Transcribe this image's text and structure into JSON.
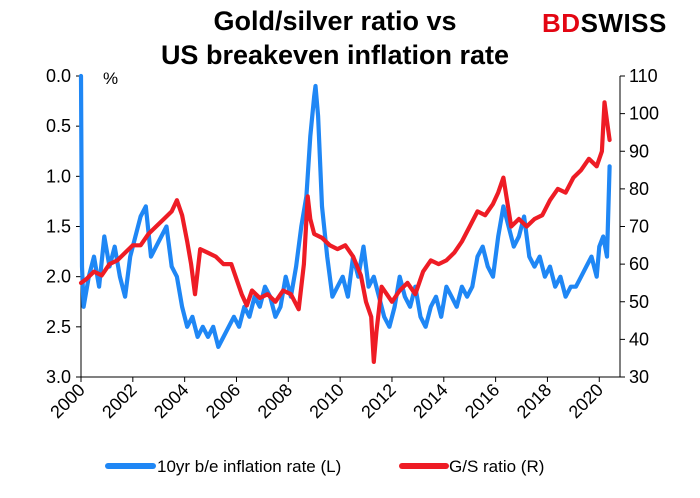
{
  "header": {
    "title_line1": "Gold/silver ratio vs",
    "title_line2": "US breakeven inflation rate"
  },
  "logo": {
    "part1": "BD",
    "part2": "SWISS",
    "color1": "#e30613",
    "color2": "#000000"
  },
  "chart_data": {
    "type": "line",
    "title": "Gold/silver ratio vs US breakeven inflation rate",
    "left_axis_unit": "%",
    "x_ticks": [
      "2000",
      "2002",
      "2004",
      "2006",
      "2008",
      "2010",
      "2012",
      "2014",
      "2016",
      "2018",
      "2020"
    ],
    "left_axis": {
      "inverted": true,
      "ylim": [
        0,
        3
      ],
      "ticks": [
        "0.0",
        "0.5",
        "1.0",
        "1.5",
        "2.0",
        "2.5",
        "3.0"
      ]
    },
    "right_axis": {
      "ylim": [
        30,
        110
      ],
      "ticks": [
        "30",
        "40",
        "50",
        "60",
        "70",
        "80",
        "90",
        "100",
        "110"
      ]
    },
    "xlim": [
      2000,
      2020.8
    ],
    "grid": false,
    "legend_position": "bottom",
    "series": [
      {
        "name": "10yr b/e inflation rate (L)",
        "axis": "left",
        "color": "#1f87f5",
        "x": [
          2000.0,
          2000.04,
          2000.1,
          2000.3,
          2000.5,
          2000.7,
          2000.9,
          2001.1,
          2001.3,
          2001.5,
          2001.7,
          2001.9,
          2002.1,
          2002.3,
          2002.5,
          2002.7,
          2002.9,
          2003.1,
          2003.3,
          2003.5,
          2003.7,
          2003.9,
          2004.1,
          2004.3,
          2004.5,
          2004.7,
          2004.9,
          2005.1,
          2005.3,
          2005.5,
          2005.7,
          2005.9,
          2006.1,
          2006.3,
          2006.5,
          2006.7,
          2006.9,
          2007.1,
          2007.3,
          2007.5,
          2007.7,
          2007.9,
          2008.1,
          2008.3,
          2008.5,
          2008.7,
          2008.85,
          2009.0,
          2009.05,
          2009.15,
          2009.3,
          2009.5,
          2009.7,
          2009.9,
          2010.1,
          2010.3,
          2010.5,
          2010.7,
          2010.9,
          2011.1,
          2011.3,
          2011.5,
          2011.7,
          2011.9,
          2012.1,
          2012.3,
          2012.5,
          2012.7,
          2012.9,
          2013.1,
          2013.3,
          2013.5,
          2013.7,
          2013.9,
          2014.1,
          2014.3,
          2014.5,
          2014.7,
          2014.9,
          2015.1,
          2015.3,
          2015.5,
          2015.7,
          2015.9,
          2016.1,
          2016.3,
          2016.5,
          2016.7,
          2016.9,
          2017.1,
          2017.3,
          2017.5,
          2017.7,
          2017.9,
          2018.1,
          2018.3,
          2018.5,
          2018.7,
          2018.9,
          2019.1,
          2019.3,
          2019.5,
          2019.7,
          2019.9,
          2020.0,
          2020.15,
          2020.3,
          2020.4
        ],
        "values": [
          0.0,
          1.9,
          2.3,
          2.0,
          1.8,
          2.1,
          1.6,
          1.9,
          1.7,
          2.0,
          2.2,
          1.8,
          1.6,
          1.4,
          1.3,
          1.8,
          1.7,
          1.6,
          1.5,
          1.9,
          2.0,
          2.3,
          2.5,
          2.4,
          2.6,
          2.5,
          2.6,
          2.5,
          2.7,
          2.6,
          2.5,
          2.4,
          2.5,
          2.3,
          2.4,
          2.2,
          2.3,
          2.1,
          2.2,
          2.4,
          2.3,
          2.0,
          2.2,
          1.9,
          1.5,
          1.2,
          0.6,
          0.2,
          0.1,
          0.4,
          1.3,
          1.8,
          2.2,
          2.1,
          2.0,
          2.2,
          1.8,
          2.0,
          1.7,
          2.1,
          2.0,
          2.2,
          2.4,
          2.5,
          2.3,
          2.0,
          2.2,
          2.3,
          2.1,
          2.4,
          2.5,
          2.3,
          2.2,
          2.4,
          2.1,
          2.2,
          2.3,
          2.1,
          2.2,
          2.1,
          1.8,
          1.7,
          1.9,
          2.0,
          1.6,
          1.3,
          1.5,
          1.7,
          1.6,
          1.4,
          1.8,
          1.9,
          1.8,
          2.0,
          1.9,
          2.1,
          2.0,
          2.2,
          2.1,
          2.1,
          2.0,
          1.9,
          1.8,
          2.0,
          1.7,
          1.6,
          1.8,
          0.9
        ]
      },
      {
        "name": "G/S ratio (R)",
        "axis": "right",
        "color": "#ee1c25",
        "x": [
          2000.0,
          2000.2,
          2000.5,
          2000.8,
          2001.1,
          2001.4,
          2001.7,
          2002.0,
          2002.3,
          2002.6,
          2002.9,
          2003.2,
          2003.5,
          2003.7,
          2003.9,
          2004.1,
          2004.25,
          2004.4,
          2004.6,
          2004.9,
          2005.2,
          2005.5,
          2005.8,
          2006.0,
          2006.2,
          2006.4,
          2006.6,
          2006.9,
          2007.2,
          2007.5,
          2007.8,
          2008.1,
          2008.4,
          2008.6,
          2008.75,
          2008.85,
          2009.0,
          2009.3,
          2009.6,
          2009.9,
          2010.2,
          2010.5,
          2010.8,
          2011.0,
          2011.2,
          2011.3,
          2011.4,
          2011.6,
          2011.8,
          2012.0,
          2012.3,
          2012.6,
          2012.9,
          2013.2,
          2013.5,
          2013.8,
          2014.1,
          2014.4,
          2014.7,
          2015.0,
          2015.3,
          2015.6,
          2015.9,
          2016.1,
          2016.3,
          2016.6,
          2016.9,
          2017.2,
          2017.5,
          2017.8,
          2018.1,
          2018.4,
          2018.7,
          2019.0,
          2019.3,
          2019.6,
          2019.9,
          2020.1,
          2020.2,
          2020.3,
          2020.4
        ],
        "values": [
          55,
          56,
          58,
          57,
          60,
          61,
          63,
          65,
          65,
          68,
          70,
          72,
          74,
          77,
          73,
          66,
          60,
          52,
          64,
          63,
          62,
          60,
          60,
          56,
          52,
          49,
          53,
          51,
          52,
          50,
          53,
          52,
          48,
          60,
          78,
          72,
          68,
          67,
          65,
          64,
          65,
          62,
          57,
          50,
          46,
          34,
          42,
          54,
          52,
          50,
          53,
          55,
          52,
          58,
          61,
          60,
          61,
          63,
          66,
          70,
          74,
          73,
          76,
          79,
          83,
          70,
          72,
          70,
          72,
          73,
          77,
          80,
          79,
          83,
          85,
          88,
          86,
          90,
          103,
          98,
          93
        ]
      }
    ]
  }
}
